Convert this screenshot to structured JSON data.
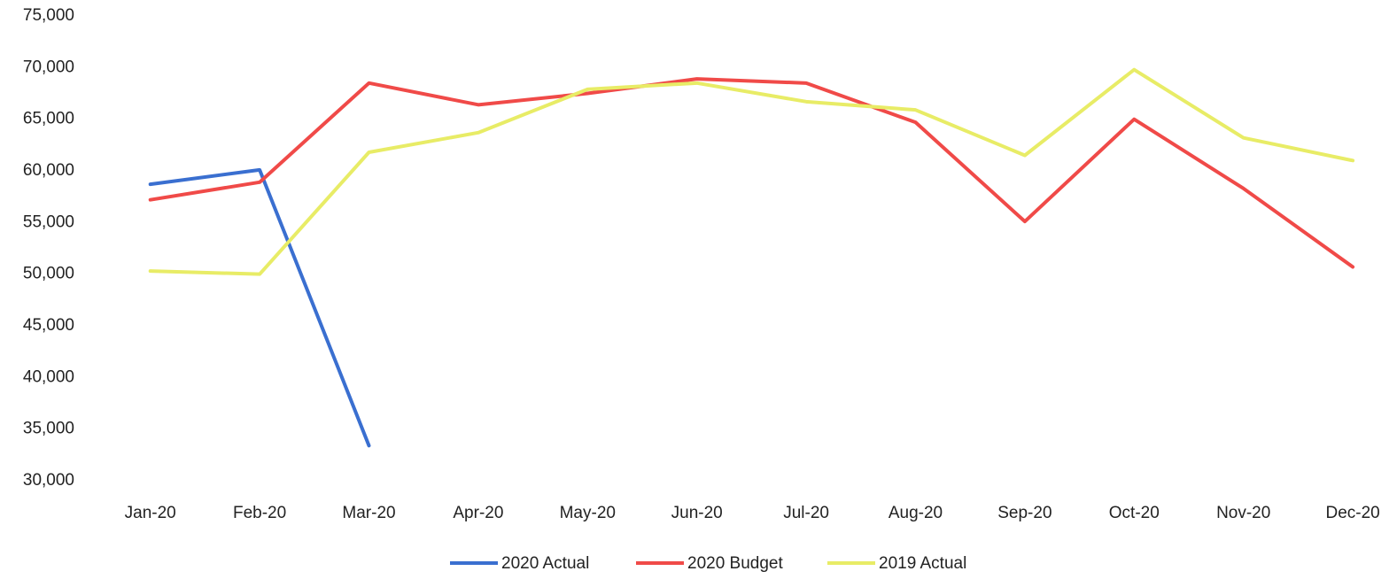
{
  "chart_data": {
    "type": "line",
    "categories": [
      "Jan-20",
      "Feb-20",
      "Mar-20",
      "Apr-20",
      "May-20",
      "Jun-20",
      "Jul-20",
      "Aug-20",
      "Sep-20",
      "Oct-20",
      "Nov-20",
      "Dec-20"
    ],
    "series": [
      {
        "name": "2020 Actual",
        "color": "#3a6fd0",
        "values": [
          58700,
          60100,
          33400,
          null,
          null,
          null,
          null,
          null,
          null,
          null,
          null,
          null
        ]
      },
      {
        "name": "2020 Budget",
        "color": "#f04a48",
        "values": [
          57200,
          58900,
          68500,
          66400,
          67500,
          68900,
          68500,
          64700,
          55100,
          65000,
          58300,
          50700
        ]
      },
      {
        "name": "2019 Actual",
        "color": "#e8ec66",
        "values": [
          50300,
          50000,
          61800,
          63700,
          67900,
          68500,
          66700,
          65900,
          61500,
          69800,
          63200,
          61000
        ]
      }
    ],
    "ylim": [
      30000,
      75000
    ],
    "yticks": [
      {
        "value": 30000,
        "label": "30,000"
      },
      {
        "value": 35000,
        "label": "35,000"
      },
      {
        "value": 40000,
        "label": "40,000"
      },
      {
        "value": 45000,
        "label": "45,000"
      },
      {
        "value": 50000,
        "label": "50,000"
      },
      {
        "value": 55000,
        "label": "55,000"
      },
      {
        "value": 60000,
        "label": "60,000"
      },
      {
        "value": 65000,
        "label": "65,000"
      },
      {
        "value": 70000,
        "label": "70,000"
      },
      {
        "value": 75000,
        "label": "75,000"
      }
    ],
    "grid": false,
    "legend": "bottom"
  }
}
